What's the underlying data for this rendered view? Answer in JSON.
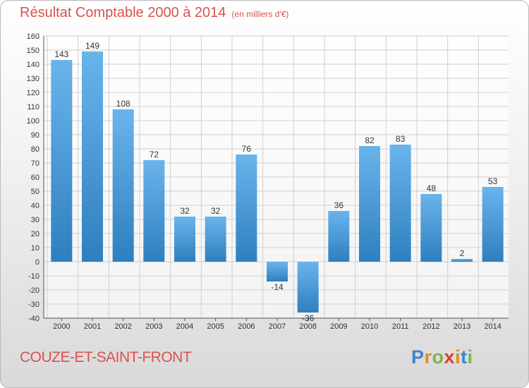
{
  "header": {
    "title": "Résultat Comptable 2000 à 2014",
    "unit": "(en milliers d'€)"
  },
  "footer": {
    "commune": "COUZE-ET-SAINT-FRONT",
    "logo_text": "Proxiti"
  },
  "colors": {
    "title": "#d9534f",
    "bar_top": "#6ab4ec",
    "bar_bottom": "#2e7fbf",
    "grid": "#d0d0d0"
  },
  "chart_data": {
    "type": "bar",
    "categories": [
      "2000",
      "2001",
      "2002",
      "2003",
      "2004",
      "2005",
      "2006",
      "2007",
      "2008",
      "2009",
      "2010",
      "2011",
      "2012",
      "2013",
      "2014"
    ],
    "values": [
      143,
      149,
      108,
      72,
      32,
      32,
      76,
      -14,
      -36,
      36,
      82,
      83,
      48,
      2,
      53
    ],
    "ylim": [
      -40,
      160
    ],
    "yticks": [
      -40,
      -30,
      -20,
      -10,
      0,
      10,
      20,
      30,
      40,
      50,
      60,
      70,
      80,
      90,
      100,
      110,
      120,
      130,
      140,
      150,
      160
    ],
    "grid": true,
    "data_labels": true
  }
}
